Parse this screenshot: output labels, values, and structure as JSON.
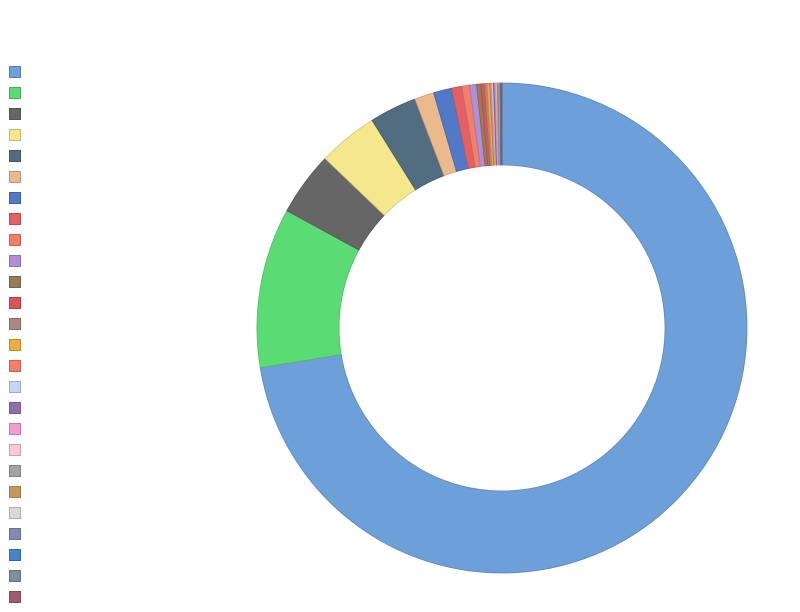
{
  "chart_data": {
    "type": "pie",
    "variant": "donut",
    "title": "",
    "legend_position": "left",
    "categories": [
      "",
      "",
      "",
      "",
      "",
      "",
      "",
      "",
      "",
      "",
      "",
      "",
      "",
      "",
      "",
      "",
      "",
      "",
      "",
      "",
      "",
      "",
      "",
      "",
      "",
      ""
    ],
    "values": [
      79.0,
      11.5,
      4.6,
      4.3,
      3.4,
      1.4,
      1.3,
      0.75,
      0.55,
      0.5,
      0.3,
      0.25,
      0.2,
      0.18,
      0.15,
      0.12,
      0.1,
      0.09,
      0.08,
      0.07,
      0.06,
      0.05,
      0.05,
      0.04,
      0.04,
      0.03
    ],
    "colors": [
      "#6d9fd8",
      "#5bdb74",
      "#666666",
      "#f5e78b",
      "#526c80",
      "#ebb98c",
      "#5079c7",
      "#e36064",
      "#f47e67",
      "#b18ed6",
      "#957d58",
      "#dc5359",
      "#ad877e",
      "#f0ac3f",
      "#f87d69",
      "#c1d8f2",
      "#8b72ad",
      "#f29cd2",
      "#fbc8d9",
      "#a3a3a3",
      "#c49a5c",
      "#d9d9d9",
      "#8489b8",
      "#4585c3",
      "#7b8f9e",
      "#9e5c6e"
    ]
  }
}
